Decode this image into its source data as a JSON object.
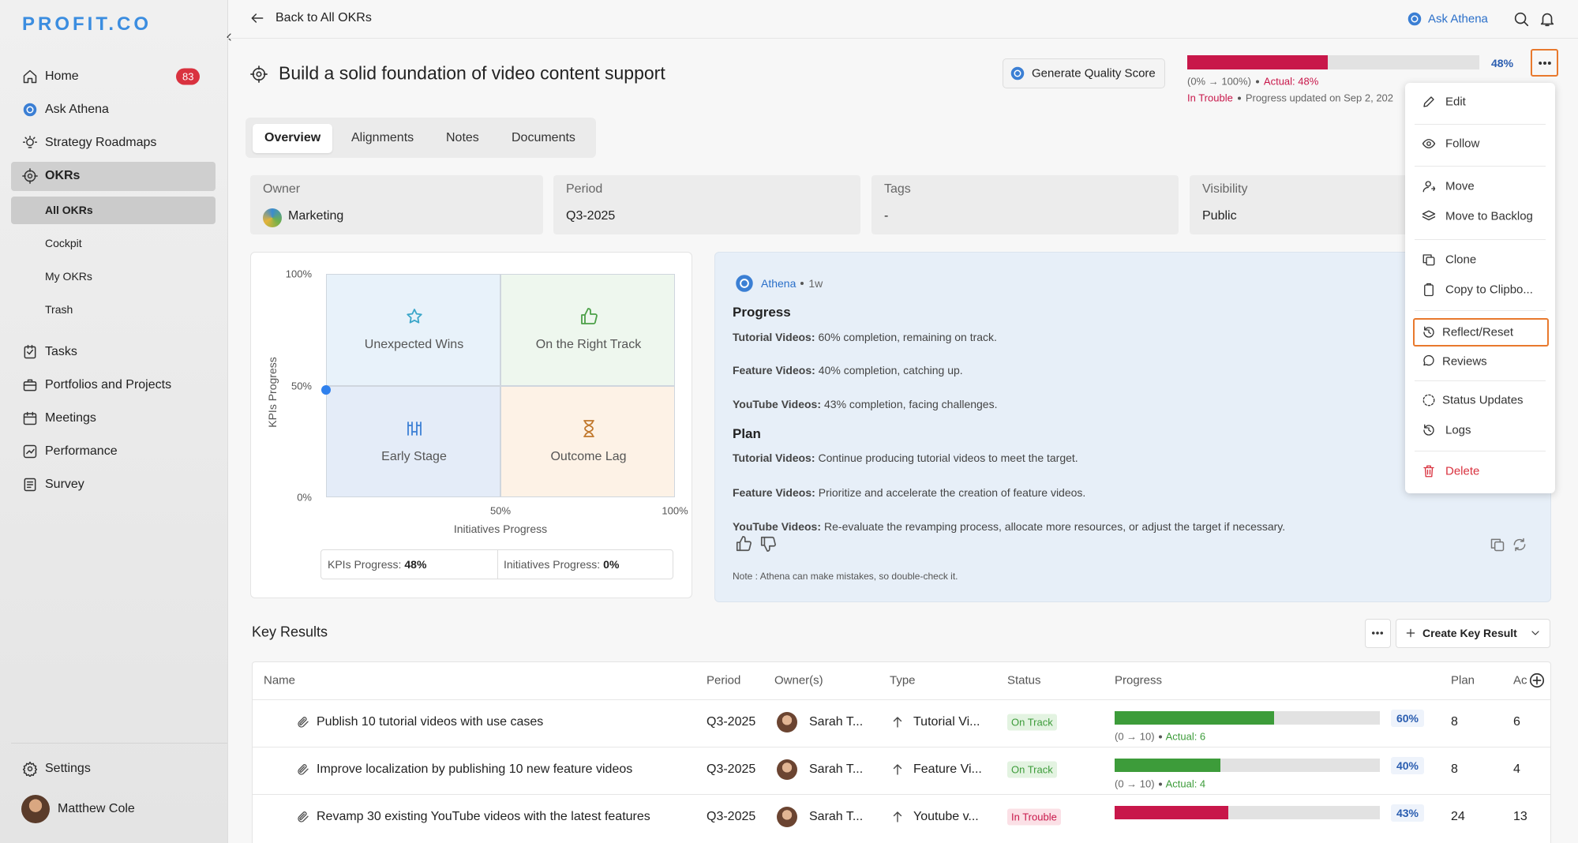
{
  "sidebar": {
    "logo": "PROFIT.CO",
    "nav": [
      {
        "label": "Home",
        "badge": "83"
      },
      {
        "label": "Ask Athena"
      },
      {
        "label": "Strategy Roadmaps"
      },
      {
        "label": "OKRs"
      }
    ],
    "okr_sub": [
      "All OKRs",
      "Cockpit",
      "My OKRs",
      "Trash"
    ],
    "nav2": [
      "Tasks",
      "Portfolios and Projects",
      "Meetings",
      "Performance",
      "Survey"
    ],
    "settings": "Settings",
    "user": "Matthew Cole"
  },
  "topbar": {
    "back": "Back to All OKRs",
    "ask": "Ask Athena"
  },
  "objective": {
    "title": "Build a solid foundation of video content support",
    "quality_button": "Generate Quality Score",
    "progress": {
      "value": 48,
      "label": "48%"
    },
    "range": "(0% → 100%)",
    "actual": "Actual: 48%",
    "status": "In Trouble",
    "updated": "Progress updated on Sep 2, 202"
  },
  "tabs": [
    "Overview",
    "Alignments",
    "Notes",
    "Documents"
  ],
  "details": [
    {
      "label": "Owner",
      "value": "Marketing"
    },
    {
      "label": "Period",
      "value": "Q3-2025"
    },
    {
      "label": "Tags",
      "value": "-"
    },
    {
      "label": "Visibility",
      "value": "Public"
    }
  ],
  "matrix": {
    "y_axis": "KPIs Progress",
    "x_axis": "Initiatives Progress",
    "yticks": [
      "100%",
      "50%",
      "0%"
    ],
    "xticks": [
      "50%",
      "100%"
    ],
    "quadrants": [
      "Unexpected Wins",
      "On the Right Track",
      "Early Stage",
      "Outcome Lag"
    ],
    "point": {
      "x": 0,
      "y": 48
    },
    "kpi_label": "KPIs Progress:",
    "kpi_value": "48%",
    "init_label": "Initiatives Progress:",
    "init_value": "0%"
  },
  "athena": {
    "name": "Athena",
    "time": "1w",
    "progress_heading": "Progress",
    "progress": [
      {
        "label": "Tutorial Videos:",
        "text": "60% completion, remaining on track."
      },
      {
        "label": "Feature Videos:",
        "text": "40% completion, catching up."
      },
      {
        "label": "YouTube Videos:",
        "text": "43% completion, facing challenges."
      }
    ],
    "plan_heading": "Plan",
    "plan": [
      {
        "label": "Tutorial Videos:",
        "text": "Continue producing tutorial videos to meet the target."
      },
      {
        "label": "Feature Videos:",
        "text": "Prioritize and accelerate the creation of feature videos."
      },
      {
        "label": "YouTube Videos:",
        "text": "Re-evaluate the revamping process, allocate more resources, or adjust the target if necessary."
      }
    ],
    "note": "Note : Athena can make mistakes, so double-check it."
  },
  "menu": [
    "Edit",
    "Follow",
    "Move",
    "Move to Backlog",
    "Clone",
    "Copy to Clipbo...",
    "Reflect/Reset",
    "Reviews",
    "Status Updates",
    "Logs",
    "Delete"
  ],
  "key_results": {
    "title": "Key Results",
    "create": "Create Key Result",
    "columns": [
      "Name",
      "Period",
      "Owner(s)",
      "Type",
      "Status",
      "Progress",
      "Plan",
      "Ac"
    ],
    "rows": [
      {
        "name": "Publish 10 tutorial videos with use cases",
        "period": "Q3-2025",
        "owner": "Sarah T...",
        "type": "Tutorial Vi...",
        "status": "On Track",
        "progress": {
          "value": 60,
          "label": "60%"
        },
        "range": "(0 → 10)",
        "actual": "Actual: 6",
        "plan": "8",
        "actual_value": "6"
      },
      {
        "name": "Improve localization by publishing 10 new feature videos",
        "period": "Q3-2025",
        "owner": "Sarah T...",
        "type": "Feature Vi...",
        "status": "On Track",
        "progress": {
          "value": 40,
          "label": "40%"
        },
        "range": "(0 → 10)",
        "actual": "Actual: 4",
        "plan": "8",
        "actual_value": "4"
      },
      {
        "name": "Revamp 30 existing YouTube videos with the latest features",
        "period": "Q3-2025",
        "owner": "Sarah T...",
        "type": "Youtube v...",
        "status": "In Trouble",
        "progress": {
          "value": 43,
          "label": "43%"
        },
        "plan": "24",
        "actual_value": "13"
      }
    ]
  }
}
